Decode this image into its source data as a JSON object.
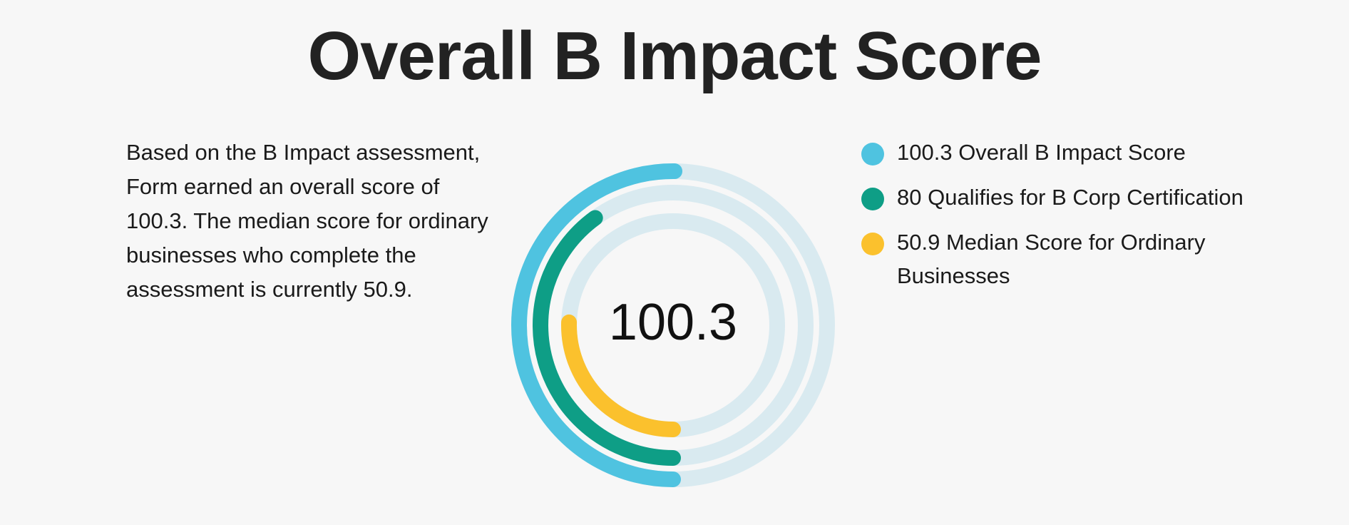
{
  "page": {
    "title": "Overall B Impact Score",
    "description": "Based on the B Impact assessment, Form earned an overall score of 100.3. The median score for ordinary businesses who complete the assessment is currently 50.9."
  },
  "chart_data": {
    "type": "radial-bar",
    "center_label": "100.3",
    "scale_max": 200,
    "grid": false,
    "legend_position": "right",
    "track_color": "#d9eaf0",
    "series": [
      {
        "name": "Overall B Impact Score",
        "value": 100.3,
        "label": "100.3 Overall B Impact Score",
        "color": "#4fc3e0"
      },
      {
        "name": "Qualifies for B Corp Certification",
        "value": 80,
        "label": "80 Qualifies for B Corp Certification",
        "color": "#0e9e86"
      },
      {
        "name": "Median Score for Ordinary Businesses",
        "value": 50.9,
        "label": "50.9 Median Score for Ordinary Businesses",
        "color": "#fbc12d"
      }
    ]
  }
}
